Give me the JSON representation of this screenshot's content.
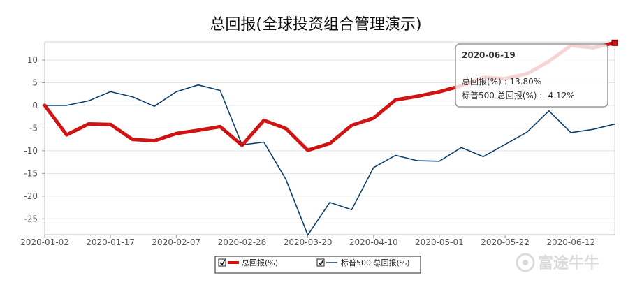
{
  "chart_data": {
    "type": "line",
    "title": "总回报(全球投资组合管理演示)",
    "xlabel": "",
    "ylabel": "",
    "ylim": [
      -28.5,
      14
    ],
    "yticks": [
      10,
      5,
      0,
      -5,
      -10,
      -15,
      -20,
      -25
    ],
    "xtick_labels": [
      "2020-01-02",
      "2020-01-17",
      "2020-02-07",
      "2020-02-28",
      "2020-03-20",
      "2020-04-10",
      "2020-05-01",
      "2020-05-22",
      "2020-06-12"
    ],
    "series": [
      {
        "name": "总回报(%)",
        "color": "#d01414",
        "values": [
          0,
          -6.5,
          -4.1,
          -4.2,
          -7.5,
          -7.8,
          -6.2,
          -5.5,
          -4.7,
          -8.8,
          -3.3,
          -5.1,
          -9.9,
          -8.4,
          -4.4,
          -2.8,
          1.2,
          2.0,
          3.0,
          4.3,
          6.2,
          5.9,
          7.0,
          9.7,
          13.2,
          12.7,
          13.8
        ]
      },
      {
        "name": "标普500 总回报(%)",
        "color": "#0d3f6e",
        "values": [
          0,
          0,
          1.0,
          3.0,
          1.9,
          -0.2,
          3.0,
          4.5,
          3.3,
          -8.7,
          -8.1,
          -16.3,
          -28.6,
          -21.4,
          -23.0,
          -13.7,
          -11.0,
          -12.2,
          -12.3,
          -9.3,
          -11.3,
          -8.6,
          -5.9,
          -1.2,
          -6.0,
          -5.3,
          -4.12
        ]
      }
    ],
    "legend": {
      "position": "bottom-center"
    },
    "grid": "horizontal",
    "tooltip": {
      "date": "2020-06-19",
      "line1": "总回报(%) : 13.80%",
      "line2": "标普500 总回报(%) : -4.12%"
    }
  },
  "watermark": {
    "text": "富途牛牛"
  }
}
